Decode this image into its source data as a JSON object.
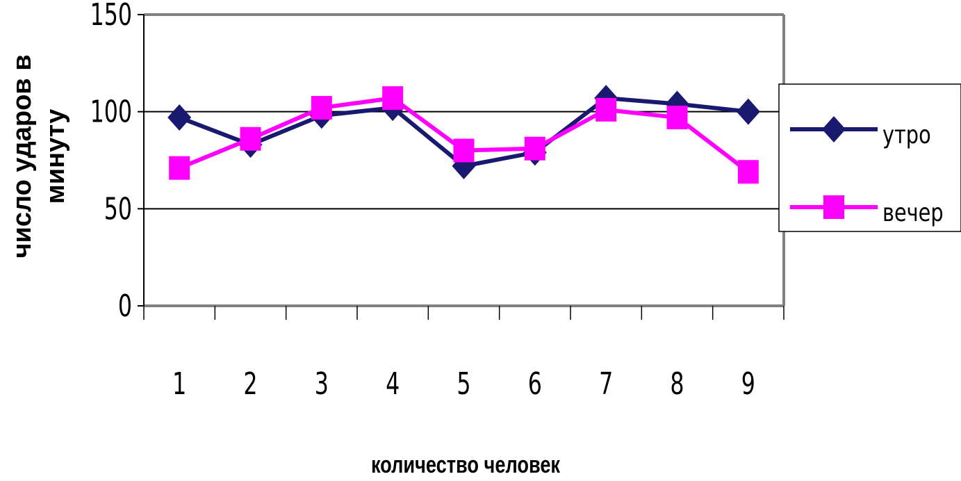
{
  "chart_data": {
    "type": "line",
    "title": "",
    "xlabel": "количество человек",
    "ylabel_lines": [
      "число ударов в",
      "минуту"
    ],
    "categories": [
      "1",
      "2",
      "3",
      "4",
      "5",
      "6",
      "7",
      "8",
      "9"
    ],
    "ylim": [
      0,
      150
    ],
    "yticks": [
      "0",
      "50",
      "100",
      "150"
    ],
    "grid": true,
    "legend_position": "right",
    "series": [
      {
        "name": "утро",
        "values": [
          97,
          83,
          98,
          102,
          72,
          79,
          107,
          104,
          100
        ],
        "color": "#191970",
        "marker": "diamond"
      },
      {
        "name": "вечер",
        "values": [
          71,
          86,
          102,
          107,
          80,
          81,
          101,
          97,
          69
        ],
        "color": "#ff00ff",
        "marker": "square"
      }
    ]
  }
}
